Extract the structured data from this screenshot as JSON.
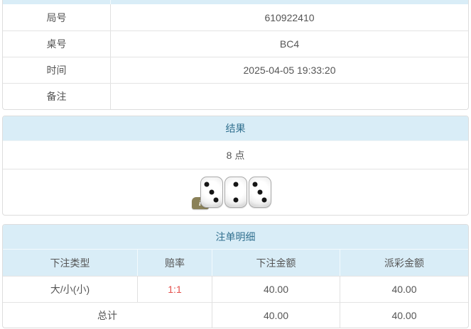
{
  "info_table": {
    "rows": [
      {
        "label": "局号",
        "value": "610922410"
      },
      {
        "label": "桌号",
        "value": "BC4"
      },
      {
        "label": "时间",
        "value": "2025-04-05 19:33:20"
      },
      {
        "label": "备注",
        "value": ""
      }
    ]
  },
  "result_panel": {
    "title": "结果",
    "points": "8 点",
    "dice": [
      3,
      2,
      3
    ],
    "info_badge_icon": "i"
  },
  "bets_panel": {
    "title": "注单明细",
    "columns": [
      "下注类型",
      "赔率",
      "下注金额",
      "派彩金额"
    ],
    "rows": [
      {
        "type": "大/小(小)",
        "odds": "1:1",
        "bet": "40.00",
        "payout": "40.00"
      }
    ],
    "total": {
      "label": "总计",
      "bet": "40.00",
      "payout": "40.00"
    }
  },
  "colors": {
    "heading_bg": "#d9edf7",
    "heading_text": "#31708f",
    "odds_red": "#e4504c",
    "body_text": "#555555",
    "border": "#dddddd"
  }
}
